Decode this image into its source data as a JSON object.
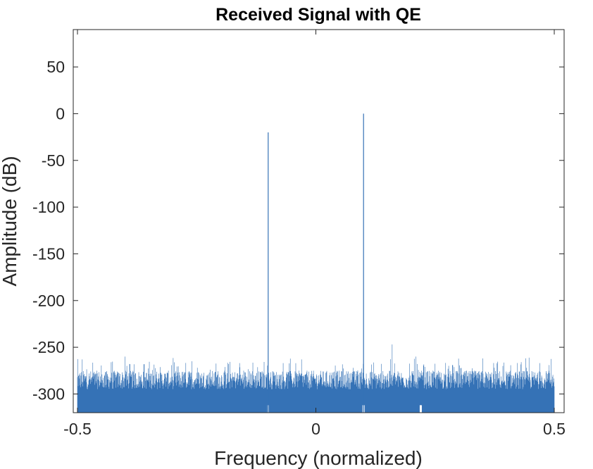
{
  "chart_data": {
    "type": "line",
    "title": "Received Signal with QE",
    "xlabel": "Frequency (normalized)",
    "ylabel": "Amplitude (dB)",
    "xlim": [
      -0.5,
      0.5
    ],
    "ylim": [
      -320,
      90
    ],
    "xticks": [
      -0.5,
      0,
      0.5
    ],
    "xtick_labels": [
      "-0.5",
      "0",
      "0.5"
    ],
    "yticks": [
      50,
      0,
      -50,
      -100,
      -150,
      -200,
      -250,
      -300
    ],
    "ytick_labels": [
      "50",
      "0",
      "-50",
      "-100",
      "-150",
      "-200",
      "-250",
      "-300"
    ],
    "grid": false,
    "series_color": "#3572b6",
    "series": [
      {
        "peaks": [
          {
            "x": -0.1,
            "y": -20
          },
          {
            "x": 0.1,
            "y": 0
          }
        ],
        "noise_floor": {
          "min": -320,
          "typical_top": -300,
          "max": -247
        }
      }
    ]
  }
}
